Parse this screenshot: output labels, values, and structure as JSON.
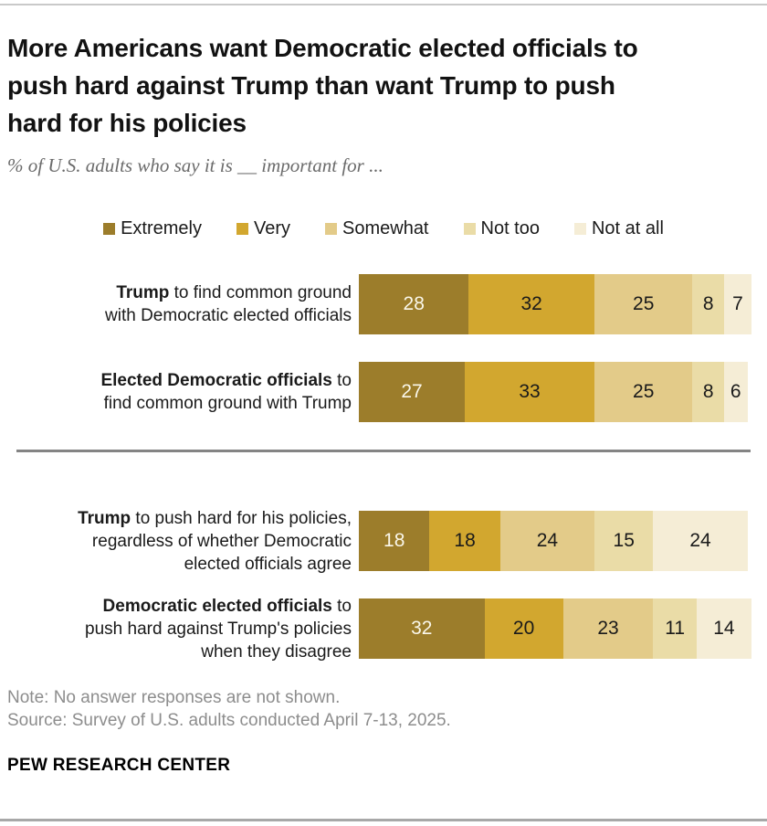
{
  "header": {
    "title": "More Americans want Democratic elected officials to\npush hard against Trump than want Trump to push\nhard for his policies",
    "subtitle": "% of U.S. adults who say it is __ important for ..."
  },
  "chart_data": {
    "type": "bar",
    "stacked": true,
    "orientation": "horizontal",
    "unit": "%",
    "axis_range": [
      0,
      100
    ],
    "grid": false,
    "legend_position": "top-center",
    "legend": [
      "Extremely",
      "Very",
      "Somewhat",
      "Not too",
      "Not at all"
    ],
    "colors": {
      "Extremely": "#9c7d2b",
      "Very": "#d2a72f",
      "Somewhat": "#e3cb89",
      "Not too": "#eadca7",
      "Not at all": "#f5edd6"
    },
    "value_label_colors": {
      "first_segment": "#faf7ea",
      "other_segments": "#1a1a1a"
    },
    "groups": [
      {
        "rows": [
          {
            "label_bold": "Trump",
            "label_rest": " to find common ground\nwith Democratic elected officials",
            "values": [
              28,
              32,
              25,
              8,
              7
            ]
          },
          {
            "label_bold": "Elected Democratic officials",
            "label_rest": " to\nfind common ground with Trump",
            "values": [
              27,
              33,
              25,
              8,
              6
            ]
          }
        ]
      },
      {
        "rows": [
          {
            "label_bold": "Trump",
            "label_rest": " to push hard for his policies,\nregardless of whether Democratic\nelected officials agree",
            "values": [
              18,
              18,
              24,
              15,
              24
            ]
          },
          {
            "label_bold": "Democratic elected officials",
            "label_rest": " to\npush hard against Trump's policies\nwhen they disagree",
            "values": [
              32,
              20,
              23,
              11,
              14
            ]
          }
        ]
      }
    ]
  },
  "footer": {
    "note": "Note: No answer responses are not shown.",
    "source": "Source: Survey of U.S. adults conducted April 7-13, 2025.",
    "brand": "PEW RESEARCH CENTER"
  }
}
